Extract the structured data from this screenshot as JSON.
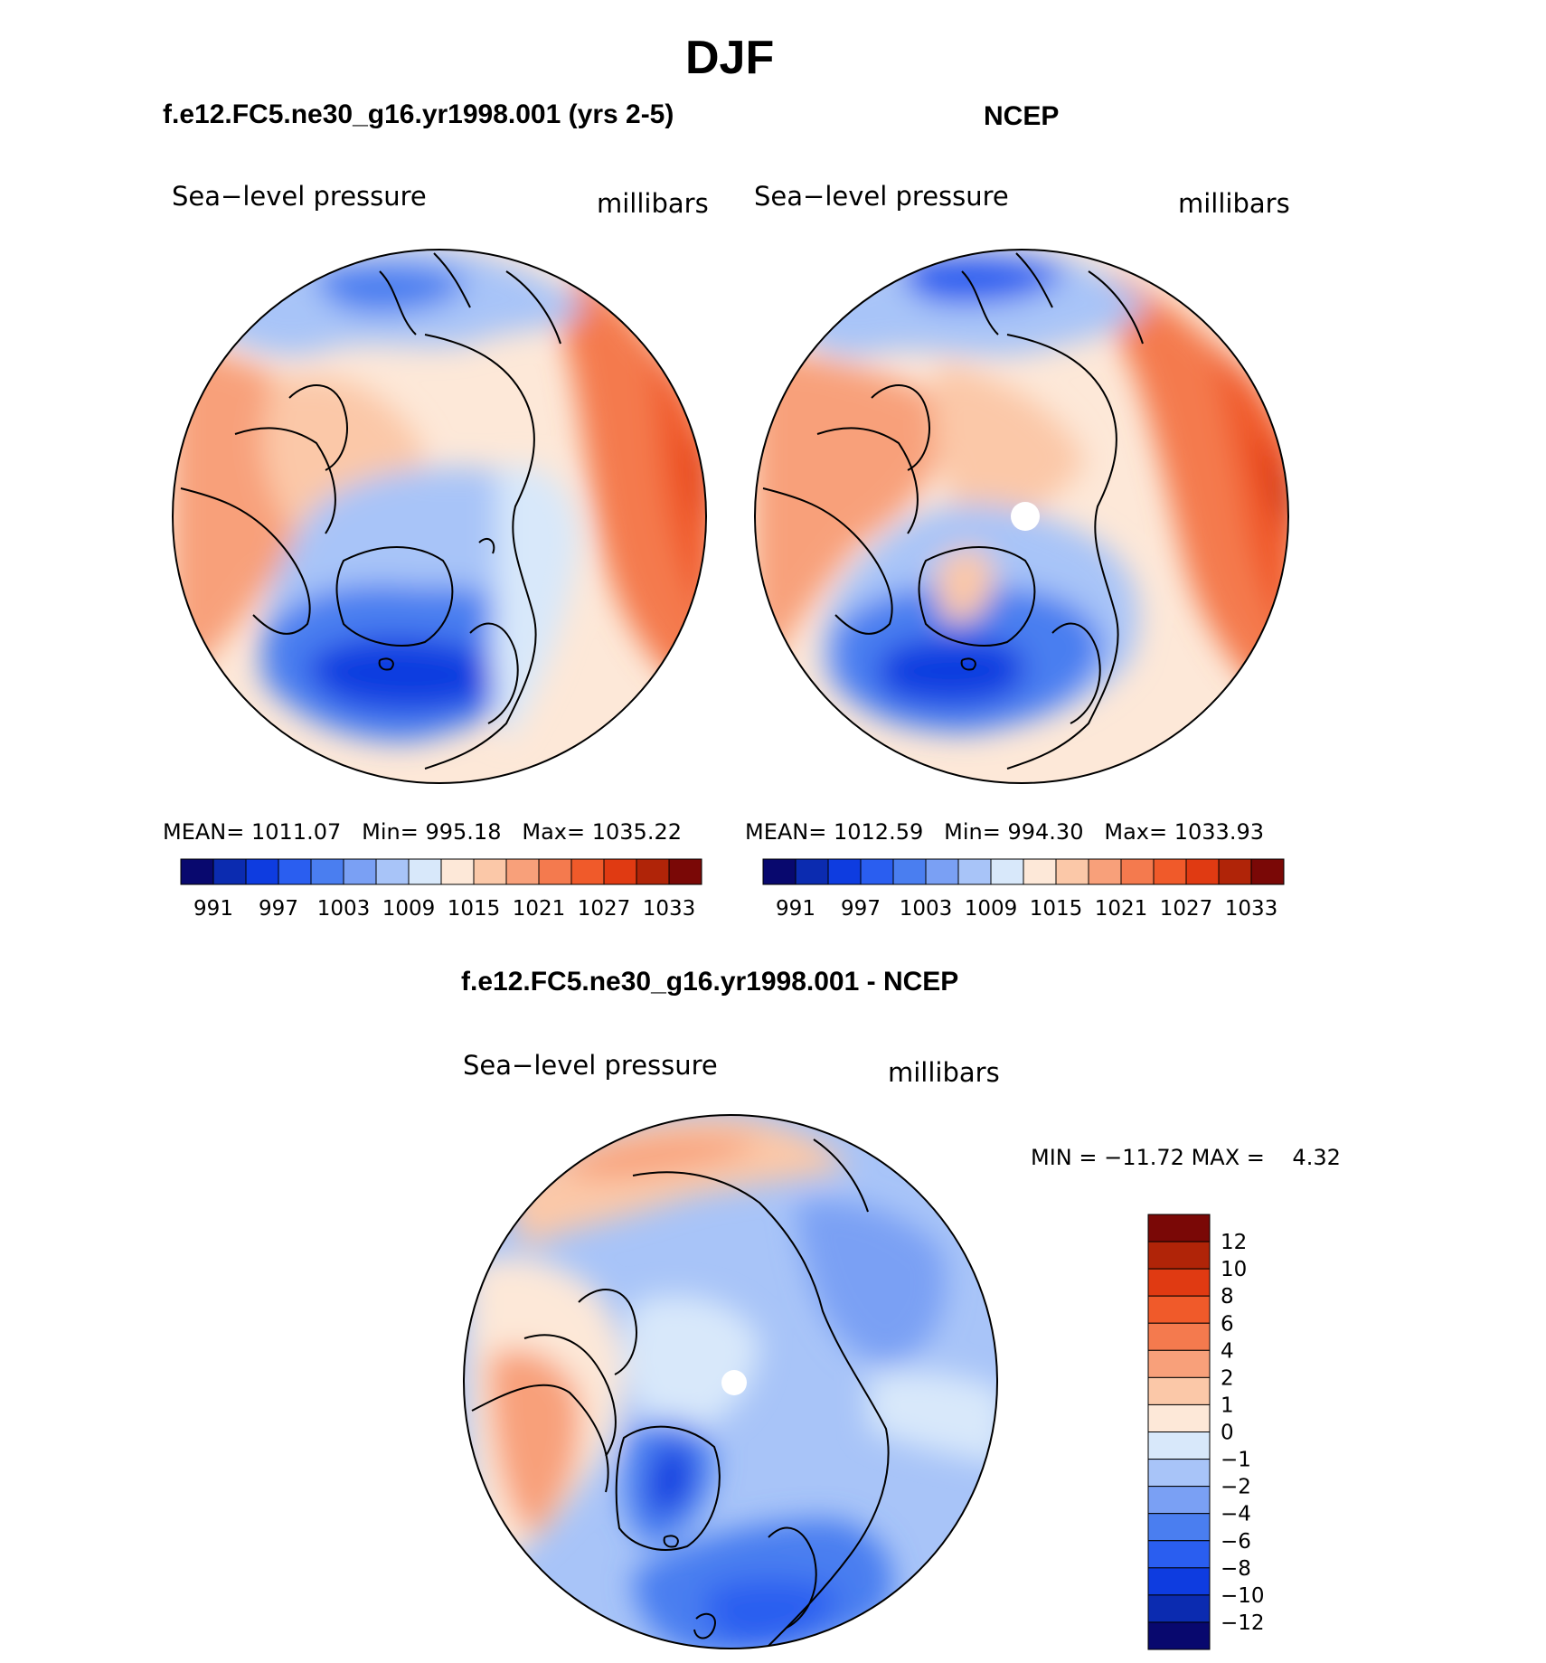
{
  "figure": {
    "season": "DJF",
    "panel_left_title": "f.e12.FC5.ne30_g16.yr1998.001 (yrs 2-5)",
    "panel_right_title": "NCEP",
    "panel_diff_title": "f.e12.FC5.ne30_g16.yr1998.001 - NCEP"
  },
  "colors": {
    "abs_scale": [
      "#08086e",
      "#0b2bb0",
      "#0e3ce0",
      "#2a5ef0",
      "#4a7ef0",
      "#7aa0f4",
      "#a8c4f8",
      "#d8e8fa",
      "#fde8d8",
      "#fbc8a8",
      "#f8a07a",
      "#f47a4e",
      "#f05a2a",
      "#e03a12",
      "#b02408",
      "#7a0806"
    ],
    "diff_scale": [
      "#08086e",
      "#0b2bb0",
      "#0e3ce0",
      "#2a5ef0",
      "#4a7ef0",
      "#7aa0f4",
      "#a8c4f8",
      "#d8e8fa",
      "#fde8d8",
      "#fbc8a8",
      "#f8a07a",
      "#f47a4e",
      "#f05a2a",
      "#e03a12",
      "#b02408",
      "#7a0806"
    ]
  },
  "chart_data": [
    {
      "type": "heatmap",
      "title": "f.e12.FC5.ne30_g16.yr1998.001 (yrs 2-5)",
      "variable": "Sea−level pressure",
      "units": "millibars",
      "projection": "polar stereographic (north polar)",
      "stats": {
        "mean_label": "MEAN=",
        "mean": "1011.07",
        "min_label": "Min=",
        "min": "995.18",
        "max_label": "Max=",
        "max": "1035.22"
      },
      "colorbar_ticks": [
        "991",
        "997",
        "1003",
        "1009",
        "1015",
        "1021",
        "1027",
        "1033"
      ],
      "levels": [
        988,
        991,
        994,
        997,
        1000,
        1003,
        1006,
        1009,
        1012,
        1015,
        1018,
        1021,
        1024,
        1027,
        1030,
        1033,
        1036
      ]
    },
    {
      "type": "heatmap",
      "title": "NCEP",
      "variable": "Sea−level pressure",
      "units": "millibars",
      "projection": "polar stereographic (north polar)",
      "stats": {
        "mean_label": "MEAN=",
        "mean": "1012.59",
        "min_label": "Min=",
        "min": "994.30",
        "max_label": "Max=",
        "max": "1033.93"
      },
      "colorbar_ticks": [
        "991",
        "997",
        "1003",
        "1009",
        "1015",
        "1021",
        "1027",
        "1033"
      ],
      "levels": [
        988,
        991,
        994,
        997,
        1000,
        1003,
        1006,
        1009,
        1012,
        1015,
        1018,
        1021,
        1024,
        1027,
        1030,
        1033,
        1036
      ]
    },
    {
      "type": "heatmap",
      "title": "f.e12.FC5.ne30_g16.yr1998.001 - NCEP",
      "variable": "Sea−level pressure",
      "units": "millibars",
      "projection": "polar stereographic (north polar)",
      "stats": {
        "min_label": "MIN =",
        "min": "−11.72",
        "max_label": "MAX =",
        "max": "4.32"
      },
      "colorbar_ticks": [
        "12",
        "10",
        "8",
        "6",
        "4",
        "2",
        "1",
        "0",
        "−1",
        "−2",
        "−4",
        "−6",
        "−8",
        "−10",
        "−12"
      ],
      "levels": [
        -12,
        -10,
        -8,
        -6,
        -4,
        -2,
        -1,
        0,
        1,
        2,
        4,
        6,
        8,
        10,
        12
      ]
    }
  ]
}
